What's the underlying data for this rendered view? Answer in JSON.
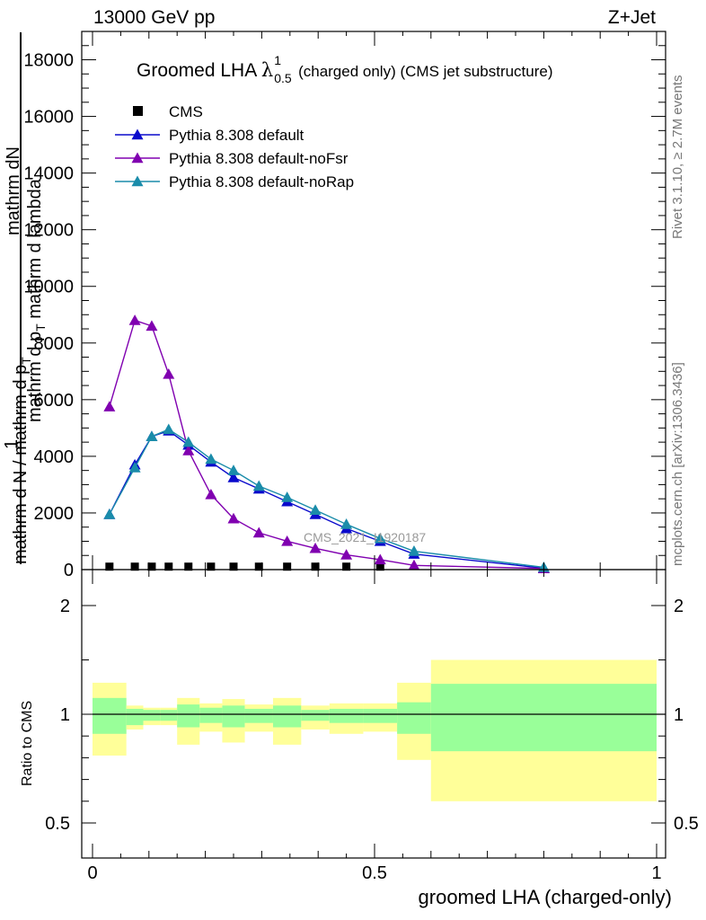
{
  "header": {
    "left": "13000 GeV pp",
    "right": "Z+Jet"
  },
  "side_text": {
    "rivet": "Rivet 3.1.10, ≥ 2.7M events",
    "mcplots": "mcplots.cern.ch [arXiv:1306.3436]"
  },
  "watermark": "CMS_2021_I1920187",
  "colors": {
    "cms": "#000000",
    "default": "#0a0acc",
    "noFsr": "#8000b0",
    "noRap": "#1a8caa",
    "band_outer": "#ffff99",
    "band_inner": "#99ff99"
  },
  "chart_data": [
    {
      "type": "line",
      "title": {
        "main": "Groomed LHA",
        "symbol": "λ",
        "sup": "1",
        "sub": "0.5",
        "rest": "(charged only) (CMS jet substructure)"
      },
      "ylabel_lines": [
        "mathrm dN",
        "mathrm d p_T mathrm d lambda",
        "1",
        "mathrm d N / mathrm d p_T"
      ],
      "ylabel_frac": {
        "outer_num": "1",
        "outer_den": "mathrm d N / mathrm d p",
        "outer_den_sub": "T",
        "inner_num": "mathrm dN",
        "inner_den": "mathrm d p",
        "inner_den_sub": "T",
        "inner_den_rest": " mathrm d lambda"
      },
      "xlim": [
        0,
        1
      ],
      "ylim": [
        0,
        19000
      ],
      "yticks": [
        2000,
        4000,
        6000,
        8000,
        10000,
        12000,
        14000,
        16000,
        18000
      ],
      "ytick_labels": [
        "2000",
        "4000",
        "6000",
        "8000",
        "10000",
        "12000",
        "14000",
        "16000",
        "18000"
      ],
      "legend": {
        "position": "top-left",
        "items": [
          {
            "name": "CMS",
            "key": "cms",
            "marker": "square"
          },
          {
            "name": "Pythia 8.308 default",
            "key": "default",
            "marker": "triangle"
          },
          {
            "name": "Pythia 8.308 default-noFsr",
            "key": "noFsr",
            "marker": "triangle"
          },
          {
            "name": "Pythia 8.308 default-noRap",
            "key": "noRap",
            "marker": "triangle"
          }
        ]
      },
      "series": [
        {
          "name": "CMS",
          "key": "cms",
          "x": [
            0.03,
            0.075,
            0.105,
            0.135,
            0.17,
            0.21,
            0.25,
            0.295,
            0.345,
            0.395,
            0.45,
            0.51
          ],
          "y": [
            25,
            25,
            25,
            25,
            25,
            25,
            25,
            25,
            25,
            25,
            25,
            25
          ]
        },
        {
          "name": "Pythia 8.308 default",
          "key": "default",
          "x": [
            0.03,
            0.075,
            0.105,
            0.135,
            0.17,
            0.21,
            0.25,
            0.295,
            0.345,
            0.395,
            0.45,
            0.51,
            0.57,
            0.8
          ],
          "y": [
            1950,
            3700,
            4700,
            4900,
            4400,
            3800,
            3250,
            2850,
            2400,
            1950,
            1450,
            1000,
            550,
            50
          ]
        },
        {
          "name": "Pythia 8.308 default-noFsr",
          "key": "noFsr",
          "x": [
            0.03,
            0.075,
            0.105,
            0.135,
            0.17,
            0.21,
            0.25,
            0.295,
            0.345,
            0.395,
            0.45,
            0.51,
            0.57,
            0.8
          ],
          "y": [
            5750,
            8800,
            8600,
            6900,
            4200,
            2650,
            1800,
            1300,
            1000,
            750,
            520,
            350,
            150,
            40
          ]
        },
        {
          "name": "Pythia 8.308 default-noRap",
          "key": "noRap",
          "x": [
            0.03,
            0.075,
            0.105,
            0.135,
            0.17,
            0.21,
            0.25,
            0.295,
            0.345,
            0.395,
            0.45,
            0.51,
            0.57,
            0.8
          ],
          "y": [
            1950,
            3600,
            4700,
            4950,
            4500,
            3900,
            3500,
            2950,
            2550,
            2100,
            1600,
            1100,
            650,
            80
          ]
        }
      ]
    },
    {
      "type": "area",
      "ylabel": "Ratio to CMS",
      "xlabel": "groomed LHA (charged-only)",
      "xlim": [
        0,
        1
      ],
      "ylim": [
        0.4,
        2.3
      ],
      "xticks": [
        0,
        0.5,
        1
      ],
      "xtick_labels": [
        "0",
        "0.5",
        "1"
      ],
      "yticks": [
        0.5,
        1,
        2
      ],
      "ytick_labels": [
        "0.5",
        "1",
        "2"
      ],
      "bins": [
        {
          "lo": 0.0,
          "hi": 0.06,
          "inner": [
            0.91,
            1.15
          ],
          "outer": [
            0.81,
            1.29
          ]
        },
        {
          "lo": 0.06,
          "hi": 0.09,
          "inner": [
            0.95,
            1.05
          ],
          "outer": [
            0.93,
            1.08
          ]
        },
        {
          "lo": 0.09,
          "hi": 0.12,
          "inner": [
            0.97,
            1.04
          ],
          "outer": [
            0.95,
            1.06
          ]
        },
        {
          "lo": 0.12,
          "hi": 0.15,
          "inner": [
            0.97,
            1.04
          ],
          "outer": [
            0.95,
            1.06
          ]
        },
        {
          "lo": 0.15,
          "hi": 0.19,
          "inner": [
            0.94,
            1.09
          ],
          "outer": [
            0.86,
            1.15
          ]
        },
        {
          "lo": 0.19,
          "hi": 0.23,
          "inner": [
            0.96,
            1.06
          ],
          "outer": [
            0.92,
            1.1
          ]
        },
        {
          "lo": 0.23,
          "hi": 0.27,
          "inner": [
            0.94,
            1.08
          ],
          "outer": [
            0.87,
            1.14
          ]
        },
        {
          "lo": 0.27,
          "hi": 0.32,
          "inner": [
            0.96,
            1.05
          ],
          "outer": [
            0.92,
            1.09
          ]
        },
        {
          "lo": 0.32,
          "hi": 0.37,
          "inner": [
            0.94,
            1.08
          ],
          "outer": [
            0.86,
            1.15
          ]
        },
        {
          "lo": 0.37,
          "hi": 0.42,
          "inner": [
            0.97,
            1.04
          ],
          "outer": [
            0.93,
            1.08
          ]
        },
        {
          "lo": 0.42,
          "hi": 0.48,
          "inner": [
            0.96,
            1.05
          ],
          "outer": [
            0.91,
            1.1
          ]
        },
        {
          "lo": 0.48,
          "hi": 0.54,
          "inner": [
            0.96,
            1.05
          ],
          "outer": [
            0.92,
            1.1
          ]
        },
        {
          "lo": 0.54,
          "hi": 0.6,
          "inner": [
            0.91,
            1.11
          ],
          "outer": [
            0.79,
            1.29
          ]
        },
        {
          "lo": 0.6,
          "hi": 1.0,
          "inner": [
            0.83,
            1.28
          ],
          "outer": [
            0.6,
            1.5
          ]
        }
      ],
      "reference_line": 1
    }
  ]
}
